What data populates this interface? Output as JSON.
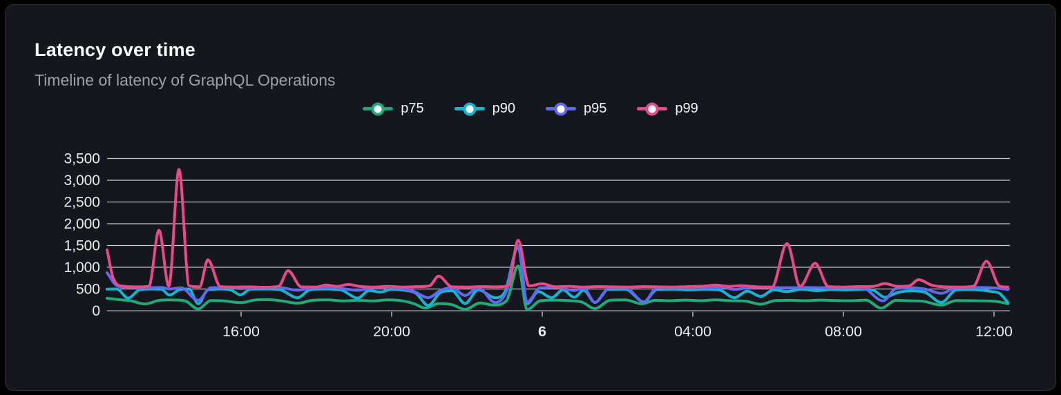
{
  "card": {
    "title": "Latency over time",
    "subtitle": "Timeline of latency of GraphQL Operations"
  },
  "colors": {
    "background": "#14171d",
    "card_border": "#2c3036",
    "gridline": "#e0e2e9",
    "axis_line": "#71757d",
    "tick_mark": "#8b9096",
    "axis_label": "#eceded",
    "title_text": "#ffffff",
    "subtitle_text": "#9ba1ab",
    "p75": "#22a979",
    "p90": "#16b4d1",
    "p95": "#6168f0",
    "p99": "#e84a87"
  },
  "chart_data": {
    "type": "line",
    "title": "Latency over time",
    "subtitle": "Timeline of latency of GraphQL Operations",
    "legend_position": "top-center",
    "grid": "horizontal",
    "x_axis": {
      "unit": "time (hours, 24h timeline; 24 = midnight of day 6)",
      "domain": [
        12.44,
        36.37
      ],
      "ticks": [
        {
          "value": 16,
          "label": "16:00",
          "bold": false
        },
        {
          "value": 20,
          "label": "20:00",
          "bold": false
        },
        {
          "value": 24,
          "label": "6",
          "bold": true
        },
        {
          "value": 28,
          "label": "04:00",
          "bold": false
        },
        {
          "value": 32,
          "label": "08:00",
          "bold": false
        },
        {
          "value": 36,
          "label": "12:00",
          "bold": false
        }
      ]
    },
    "y_axis": {
      "unit": "latency (ms)",
      "range": [
        0,
        3500
      ],
      "ticks": [
        {
          "value": 0,
          "label": "0"
        },
        {
          "value": 500,
          "label": "500"
        },
        {
          "value": 1000,
          "label": "1,000"
        },
        {
          "value": 1500,
          "label": "1,500"
        },
        {
          "value": 2000,
          "label": "2,000"
        },
        {
          "value": 2500,
          "label": "2,500"
        },
        {
          "value": 3000,
          "label": "3,000"
        },
        {
          "value": 3500,
          "label": "3,500"
        }
      ]
    },
    "series": [
      {
        "name": "p75",
        "color": "#22a979",
        "points": [
          [
            12.44,
            287
          ],
          [
            12.75,
            255
          ],
          [
            13.05,
            230
          ],
          [
            13.45,
            155
          ],
          [
            13.8,
            235
          ],
          [
            14.1,
            250
          ],
          [
            14.5,
            230
          ],
          [
            14.86,
            40
          ],
          [
            15.2,
            235
          ],
          [
            15.55,
            225
          ],
          [
            16.0,
            185
          ],
          [
            16.35,
            245
          ],
          [
            16.7,
            255
          ],
          [
            17.05,
            230
          ],
          [
            17.5,
            175
          ],
          [
            17.9,
            240
          ],
          [
            18.3,
            250
          ],
          [
            18.7,
            225
          ],
          [
            19.1,
            240
          ],
          [
            19.5,
            225
          ],
          [
            19.9,
            250
          ],
          [
            20.3,
            225
          ],
          [
            20.6,
            160
          ],
          [
            20.9,
            60
          ],
          [
            21.25,
            165
          ],
          [
            21.6,
            140
          ],
          [
            21.95,
            30
          ],
          [
            22.35,
            180
          ],
          [
            22.7,
            130
          ],
          [
            23.05,
            230
          ],
          [
            23.36,
            1030
          ],
          [
            23.6,
            25
          ],
          [
            23.95,
            230
          ],
          [
            24.35,
            245
          ],
          [
            24.75,
            230
          ],
          [
            25.05,
            200
          ],
          [
            25.4,
            50
          ],
          [
            25.8,
            240
          ],
          [
            26.2,
            250
          ],
          [
            26.65,
            160
          ],
          [
            27.0,
            240
          ],
          [
            27.4,
            230
          ],
          [
            27.8,
            245
          ],
          [
            28.2,
            230
          ],
          [
            28.6,
            250
          ],
          [
            29.0,
            230
          ],
          [
            29.4,
            220
          ],
          [
            29.8,
            150
          ],
          [
            30.2,
            235
          ],
          [
            30.6,
            240
          ],
          [
            31.0,
            230
          ],
          [
            31.4,
            245
          ],
          [
            31.8,
            235
          ],
          [
            32.2,
            230
          ],
          [
            32.6,
            245
          ],
          [
            33.0,
            60
          ],
          [
            33.4,
            240
          ],
          [
            33.7,
            230
          ],
          [
            34.1,
            220
          ],
          [
            34.6,
            130
          ],
          [
            35.0,
            235
          ],
          [
            35.4,
            230
          ],
          [
            35.8,
            225
          ],
          [
            36.1,
            210
          ],
          [
            36.37,
            160
          ]
        ]
      },
      {
        "name": "p90",
        "color": "#16b4d1",
        "points": [
          [
            12.44,
            495
          ],
          [
            12.7,
            500
          ],
          [
            13.0,
            290
          ],
          [
            13.3,
            480
          ],
          [
            13.6,
            500
          ],
          [
            13.88,
            495
          ],
          [
            14.1,
            360
          ],
          [
            14.38,
            490
          ],
          [
            14.62,
            500
          ],
          [
            14.86,
            160
          ],
          [
            15.12,
            480
          ],
          [
            15.45,
            500
          ],
          [
            15.75,
            470
          ],
          [
            15.98,
            365
          ],
          [
            16.25,
            495
          ],
          [
            16.6,
            500
          ],
          [
            17.0,
            490
          ],
          [
            17.5,
            300
          ],
          [
            17.85,
            490
          ],
          [
            18.25,
            500
          ],
          [
            18.65,
            480
          ],
          [
            19.1,
            290
          ],
          [
            19.4,
            465
          ],
          [
            19.7,
            430
          ],
          [
            20.0,
            495
          ],
          [
            20.35,
            470
          ],
          [
            20.65,
            400
          ],
          [
            20.97,
            120
          ],
          [
            21.3,
            420
          ],
          [
            21.6,
            460
          ],
          [
            21.95,
            165
          ],
          [
            22.3,
            480
          ],
          [
            22.75,
            300
          ],
          [
            23.0,
            420
          ],
          [
            23.36,
            1460
          ],
          [
            23.6,
            160
          ],
          [
            23.9,
            440
          ],
          [
            24.25,
            300
          ],
          [
            24.55,
            480
          ],
          [
            24.85,
            310
          ],
          [
            25.1,
            470
          ],
          [
            25.4,
            190
          ],
          [
            25.75,
            490
          ],
          [
            26.2,
            495
          ],
          [
            26.7,
            205
          ],
          [
            27.05,
            490
          ],
          [
            27.5,
            495
          ],
          [
            27.9,
            480
          ],
          [
            28.3,
            495
          ],
          [
            28.7,
            480
          ],
          [
            29.1,
            300
          ],
          [
            29.45,
            450
          ],
          [
            29.8,
            330
          ],
          [
            30.15,
            480
          ],
          [
            30.5,
            440
          ],
          [
            30.9,
            495
          ],
          [
            31.3,
            460
          ],
          [
            31.7,
            490
          ],
          [
            32.1,
            480
          ],
          [
            32.5,
            495
          ],
          [
            32.8,
            470
          ],
          [
            33.1,
            310
          ],
          [
            33.45,
            420
          ],
          [
            33.8,
            455
          ],
          [
            34.15,
            430
          ],
          [
            34.6,
            190
          ],
          [
            35.0,
            480
          ],
          [
            35.35,
            490
          ],
          [
            35.7,
            470
          ],
          [
            35.95,
            440
          ],
          [
            36.15,
            400
          ],
          [
            36.37,
            185
          ]
        ]
      },
      {
        "name": "p95",
        "color": "#6168f0",
        "points": [
          [
            12.44,
            875
          ],
          [
            12.7,
            580
          ],
          [
            13.0,
            535
          ],
          [
            13.5,
            530
          ],
          [
            13.9,
            535
          ],
          [
            14.1,
            500
          ],
          [
            14.4,
            530
          ],
          [
            14.86,
            240
          ],
          [
            15.2,
            530
          ],
          [
            15.7,
            535
          ],
          [
            16.0,
            510
          ],
          [
            16.4,
            530
          ],
          [
            17.0,
            535
          ],
          [
            17.5,
            470
          ],
          [
            17.9,
            530
          ],
          [
            18.4,
            535
          ],
          [
            19.1,
            470
          ],
          [
            19.5,
            530
          ],
          [
            20.0,
            535
          ],
          [
            20.6,
            440
          ],
          [
            20.97,
            300
          ],
          [
            21.3,
            470
          ],
          [
            21.6,
            530
          ],
          [
            21.95,
            350
          ],
          [
            22.3,
            530
          ],
          [
            22.75,
            190
          ],
          [
            23.05,
            450
          ],
          [
            23.36,
            1500
          ],
          [
            23.6,
            200
          ],
          [
            23.95,
            530
          ],
          [
            24.4,
            535
          ],
          [
            24.85,
            465
          ],
          [
            25.1,
            520
          ],
          [
            25.4,
            190
          ],
          [
            25.8,
            530
          ],
          [
            26.2,
            535
          ],
          [
            26.7,
            205
          ],
          [
            27.05,
            530
          ],
          [
            27.6,
            535
          ],
          [
            28.2,
            530
          ],
          [
            28.8,
            535
          ],
          [
            29.1,
            490
          ],
          [
            29.5,
            530
          ],
          [
            30.0,
            535
          ],
          [
            30.5,
            530
          ],
          [
            31.0,
            535
          ],
          [
            31.5,
            530
          ],
          [
            32.0,
            535
          ],
          [
            32.5,
            530
          ],
          [
            33.05,
            225
          ],
          [
            33.4,
            510
          ],
          [
            33.8,
            530
          ],
          [
            34.15,
            500
          ],
          [
            34.6,
            400
          ],
          [
            35.0,
            530
          ],
          [
            35.5,
            535
          ],
          [
            36.0,
            525
          ],
          [
            36.37,
            490
          ]
        ]
      },
      {
        "name": "p99",
        "color": "#e84a87",
        "points": [
          [
            12.44,
            1400
          ],
          [
            12.6,
            760
          ],
          [
            12.85,
            565
          ],
          [
            13.2,
            550
          ],
          [
            13.55,
            560
          ],
          [
            13.82,
            1850
          ],
          [
            14.08,
            565
          ],
          [
            14.35,
            3250
          ],
          [
            14.62,
            575
          ],
          [
            14.9,
            550
          ],
          [
            15.12,
            1170
          ],
          [
            15.45,
            555
          ],
          [
            15.8,
            545
          ],
          [
            16.2,
            550
          ],
          [
            16.6,
            540
          ],
          [
            17.0,
            565
          ],
          [
            17.25,
            920
          ],
          [
            17.6,
            550
          ],
          [
            18.0,
            545
          ],
          [
            18.25,
            590
          ],
          [
            18.55,
            560
          ],
          [
            18.85,
            605
          ],
          [
            19.15,
            560
          ],
          [
            19.5,
            545
          ],
          [
            19.9,
            560
          ],
          [
            20.3,
            545
          ],
          [
            20.7,
            555
          ],
          [
            21.0,
            570
          ],
          [
            21.25,
            795
          ],
          [
            21.6,
            550
          ],
          [
            22.0,
            545
          ],
          [
            22.4,
            555
          ],
          [
            22.8,
            550
          ],
          [
            23.1,
            580
          ],
          [
            23.36,
            1620
          ],
          [
            23.65,
            570
          ],
          [
            24.0,
            620
          ],
          [
            24.35,
            550
          ],
          [
            24.7,
            560
          ],
          [
            25.1,
            545
          ],
          [
            25.5,
            555
          ],
          [
            25.9,
            550
          ],
          [
            26.3,
            545
          ],
          [
            26.7,
            555
          ],
          [
            27.1,
            550
          ],
          [
            27.5,
            545
          ],
          [
            27.9,
            555
          ],
          [
            28.3,
            565
          ],
          [
            28.6,
            590
          ],
          [
            28.95,
            560
          ],
          [
            29.3,
            575
          ],
          [
            29.7,
            550
          ],
          [
            30.1,
            545
          ],
          [
            30.5,
            1545
          ],
          [
            30.85,
            560
          ],
          [
            31.25,
            1090
          ],
          [
            31.6,
            555
          ],
          [
            32.0,
            545
          ],
          [
            32.4,
            555
          ],
          [
            32.8,
            560
          ],
          [
            33.1,
            625
          ],
          [
            33.45,
            560
          ],
          [
            33.75,
            575
          ],
          [
            34.0,
            715
          ],
          [
            34.35,
            585
          ],
          [
            34.7,
            550
          ],
          [
            35.1,
            545
          ],
          [
            35.45,
            560
          ],
          [
            35.8,
            1140
          ],
          [
            36.15,
            565
          ],
          [
            36.37,
            545
          ]
        ]
      }
    ]
  }
}
